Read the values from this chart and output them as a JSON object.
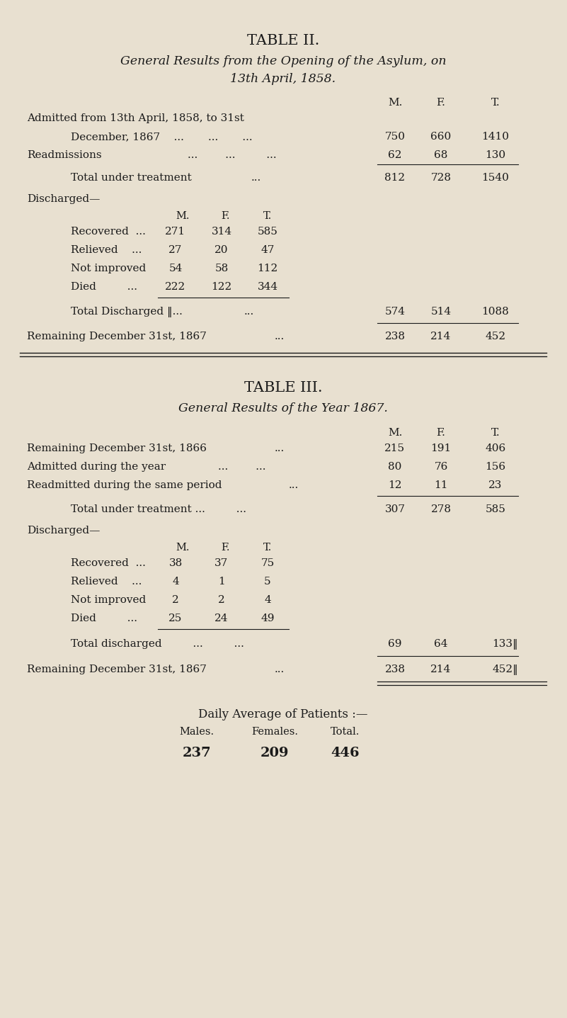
{
  "bg_color": "#e8e0d0",
  "text_color": "#1a1a1a",
  "table2_title": "TABLE II.",
  "table2_subtitle1": "General Results from the Opening of the Asylum, on",
  "table2_subtitle2": "13th April, 1858.",
  "table3_title": "TABLE III.",
  "table3_subtitle": "General Results of the Year 1867.",
  "daily_avg_title": "Daily Average of Patients :—",
  "daily_avg_headers": [
    "Males.",
    "Females.",
    "Total."
  ],
  "daily_avg_values": [
    "237",
    "209",
    "446"
  ],
  "em_dash": "—",
  "double_bar": "‖"
}
